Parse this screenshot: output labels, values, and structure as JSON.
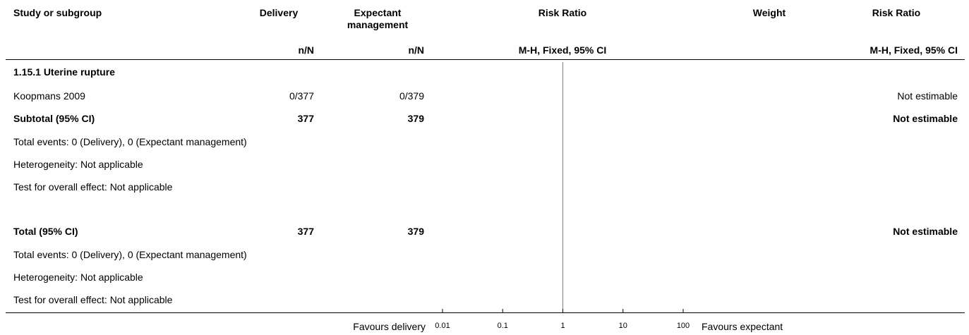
{
  "header": {
    "col_study": "Study or subgroup",
    "col_exp": "Delivery",
    "col_ctrl_line1": "Expectant",
    "col_ctrl_line2": "management",
    "col_rr": "Risk Ratio",
    "col_weight": "Weight",
    "col_rr2": "Risk Ratio",
    "sub_exp": "n/N",
    "sub_ctrl": "n/N",
    "sub_rr": "M-H, Fixed, 95% CI",
    "sub_rr2": "M-H, Fixed, 95% CI"
  },
  "subgroup": {
    "title": "1.15.1 Uterine rupture",
    "studies": [
      {
        "name": "Koopmans 2009",
        "exp": "0/377",
        "ctrl": "0/379",
        "weight": "",
        "effect": "Not estimable"
      }
    ],
    "subtotal": {
      "label": "Subtotal (95% CI)",
      "exp": "377",
      "ctrl": "379",
      "effect": "Not estimable"
    },
    "total_events": "Total events: 0 (Delivery), 0 (Expectant management)",
    "heterogeneity": "Heterogeneity: Not applicable",
    "overall_effect": "Test for overall effect: Not applicable"
  },
  "total": {
    "label": "Total (95% CI)",
    "exp": "377",
    "ctrl": "379",
    "effect": "Not estimable",
    "total_events": "Total events: 0 (Delivery), 0 (Expectant management)",
    "heterogeneity": "Heterogeneity: Not applicable",
    "overall_effect": "Test for overall effect: Not applicable"
  },
  "axis": {
    "left_label": "Favours delivery",
    "right_label": "Favours expectant"
  },
  "chart_data": {
    "type": "forest",
    "scale": "log",
    "xlim": [
      0.01,
      100
    ],
    "null_value": 1,
    "ticks": [
      0.01,
      0.1,
      1,
      10,
      100
    ],
    "tick_labels": [
      "0.01",
      "0.1",
      "1",
      "10",
      "100"
    ],
    "points": []
  }
}
